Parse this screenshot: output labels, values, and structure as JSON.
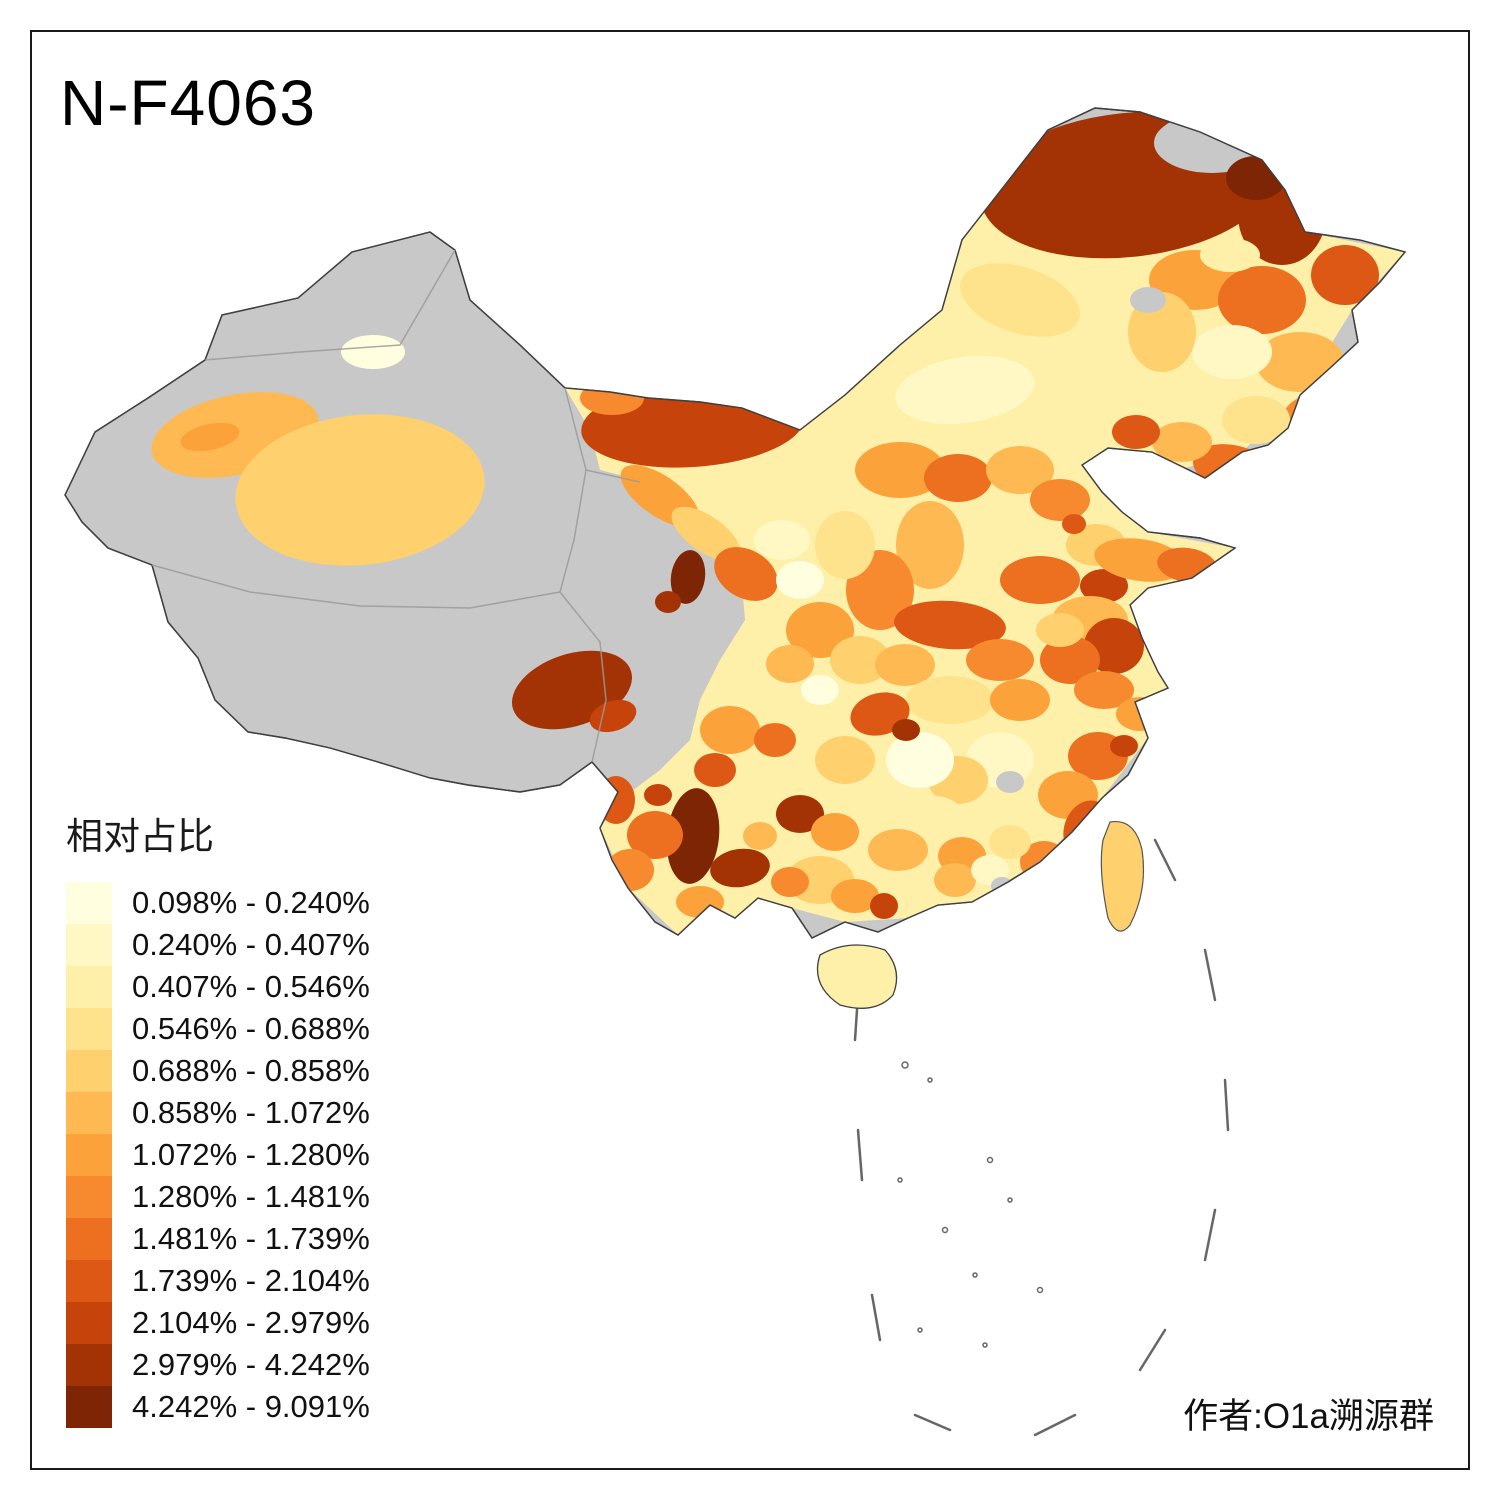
{
  "title": "N-F4063",
  "credit": "作者:O1a溯源群",
  "legend": {
    "title": "相对占比",
    "items": [
      {
        "label": "0.098% - 0.240%",
        "color": "#FFFFE0"
      },
      {
        "label": "0.240% - 0.407%",
        "color": "#FFF8C5"
      },
      {
        "label": "0.407% - 0.546%",
        "color": "#FEF0A9"
      },
      {
        "label": "0.546% - 0.688%",
        "color": "#FEE38C"
      },
      {
        "label": "0.688% - 0.858%",
        "color": "#FED06E"
      },
      {
        "label": "0.858% - 1.072%",
        "color": "#FEB952"
      },
      {
        "label": "1.072% - 1.280%",
        "color": "#FCA23B"
      },
      {
        "label": "1.280% - 1.481%",
        "color": "#F7892E"
      },
      {
        "label": "1.481% - 1.739%",
        "color": "#ED6F20"
      },
      {
        "label": "1.739% - 2.104%",
        "color": "#DD5814"
      },
      {
        "label": "2.104% - 2.979%",
        "color": "#C6440C"
      },
      {
        "label": "2.979% - 4.242%",
        "color": "#A33305"
      },
      {
        "label": "4.242% - 9.091%",
        "color": "#7D2504"
      }
    ]
  },
  "map": {
    "no_data_color": "#C8C8C8",
    "border_color": "#3F3F3F",
    "background": "#FFFFFF"
  }
}
